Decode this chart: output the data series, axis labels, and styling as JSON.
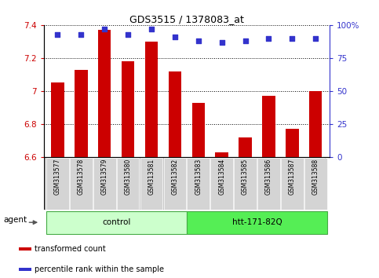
{
  "title": "GDS3515 / 1378083_at",
  "samples": [
    "GSM313577",
    "GSM313578",
    "GSM313579",
    "GSM313580",
    "GSM313581",
    "GSM313582",
    "GSM313583",
    "GSM313584",
    "GSM313585",
    "GSM313586",
    "GSM313587",
    "GSM313588"
  ],
  "bar_values": [
    7.05,
    7.13,
    7.37,
    7.18,
    7.3,
    7.12,
    6.93,
    6.63,
    6.72,
    6.97,
    6.77,
    7.0
  ],
  "percentile_values": [
    93,
    93,
    97,
    93,
    97,
    91,
    88,
    87,
    88,
    90,
    90,
    90
  ],
  "bar_color": "#cc0000",
  "percentile_color": "#3333cc",
  "ylim": [
    6.6,
    7.4
  ],
  "yticks": [
    6.6,
    6.8,
    7.0,
    7.2,
    7.4
  ],
  "right_yticks": [
    0,
    25,
    50,
    75,
    100
  ],
  "right_ylabels": [
    "0",
    "25",
    "50",
    "75",
    "100%"
  ],
  "groups": [
    {
      "label": "control",
      "start": 0,
      "end": 6,
      "color": "#ccffcc",
      "edge": "#44aa44"
    },
    {
      "label": "htt-171-82Q",
      "start": 6,
      "end": 12,
      "color": "#55ee55",
      "edge": "#44aa44"
    }
  ],
  "agent_label": "agent",
  "legend_items": [
    {
      "label": "transformed count",
      "color": "#cc0000"
    },
    {
      "label": "percentile rank within the sample",
      "color": "#3333cc"
    }
  ],
  "grid_color": "#000000",
  "background_color": "#ffffff",
  "bar_bottom": 6.6,
  "label_bg": "#c8c8c8",
  "label_sep_color": "#ffffff"
}
